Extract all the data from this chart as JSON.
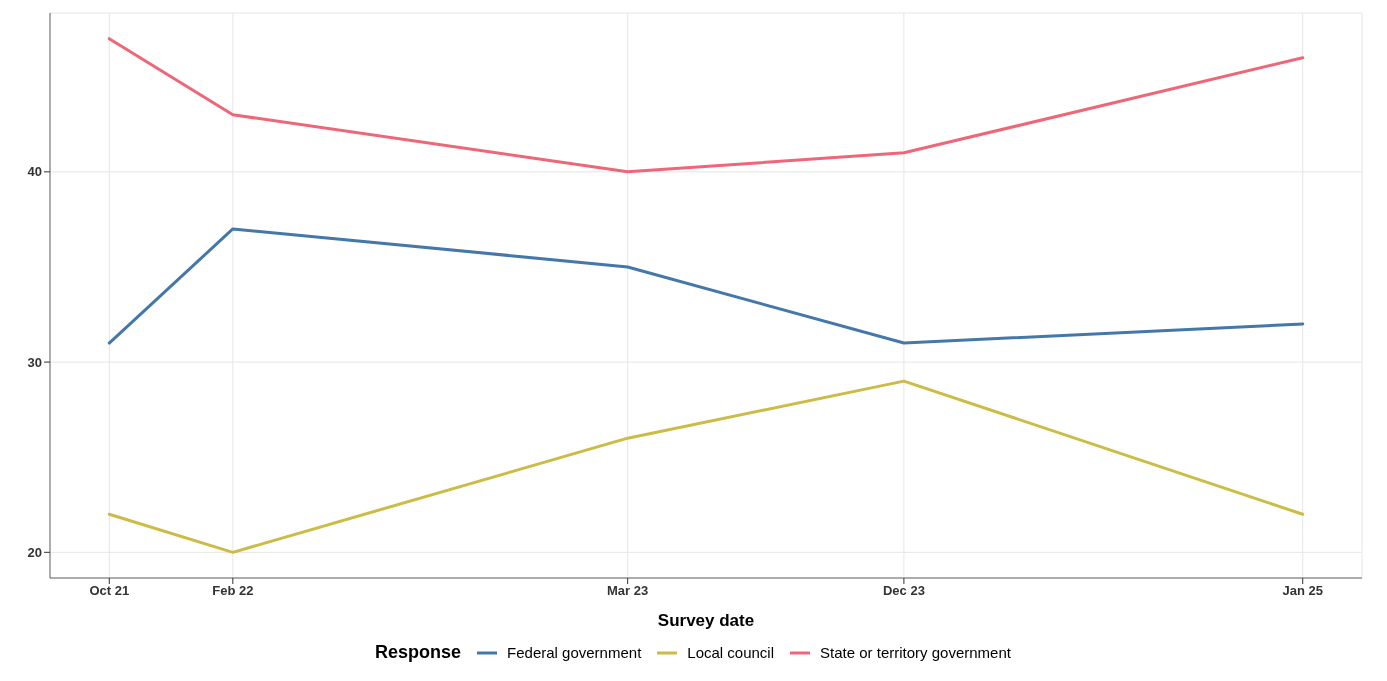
{
  "chart_data": {
    "type": "line",
    "xlabel": "Survey date",
    "legend_title": "Response",
    "legend": "bottom",
    "grid": true,
    "x": [
      "2021-10",
      "2022-02",
      "2023-03",
      "2023-12",
      "2025-01"
    ],
    "xlim": [
      "2021-08-03",
      "2025-03-01"
    ],
    "xticks": [
      {
        "value": "2021-10",
        "label": "Oct 21"
      },
      {
        "value": "2022-02",
        "label": "Feb 22"
      },
      {
        "value": "2023-03",
        "label": "Mar 23"
      },
      {
        "value": "2023-12",
        "label": "Dec 23"
      },
      {
        "value": "2025-01",
        "label": "Jan 25"
      }
    ],
    "ylim": [
      18.65,
      48.35
    ],
    "yticks": [
      20,
      30,
      40
    ],
    "series": [
      {
        "name": "Federal government",
        "color": "#4477aa",
        "values": [
          31,
          37,
          35,
          31,
          32
        ]
      },
      {
        "name": "Local council",
        "color": "#ccbb44",
        "values": [
          22,
          20,
          26,
          29,
          22
        ]
      },
      {
        "name": "State or territory government",
        "color": "#ee6677",
        "values": [
          47,
          43,
          40,
          41,
          46
        ]
      }
    ]
  }
}
